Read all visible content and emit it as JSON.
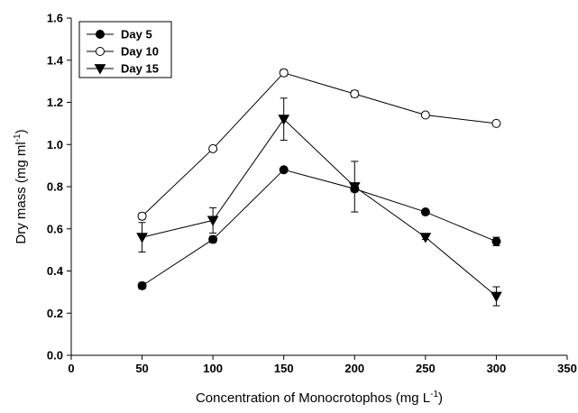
{
  "chart_data": {
    "type": "line",
    "title": "",
    "xlabel": {
      "main": "Concentration of Monocrotophos (mg L",
      "sup": "-1",
      "end": ")"
    },
    "ylabel": {
      "main": "Dry mass (mg ml",
      "sup": "-1",
      "end": ")"
    },
    "xlim": [
      0,
      350
    ],
    "ylim": [
      0.0,
      1.6
    ],
    "xticks": [
      "0",
      "50",
      "100",
      "150",
      "200",
      "250",
      "300",
      "350"
    ],
    "yticks": [
      "0.0",
      "0.2",
      "0.4",
      "0.6",
      "0.8",
      "1.0",
      "1.2",
      "1.4",
      "1.6"
    ],
    "grid": false,
    "legend_position": "top-left",
    "x": [
      50,
      100,
      150,
      200,
      250,
      300
    ],
    "series": [
      {
        "name": "Day 5",
        "marker": "filled-circle",
        "values": [
          0.33,
          0.55,
          0.88,
          0.79,
          0.68,
          0.54
        ],
        "errors": [
          0.015,
          0.015,
          0.01,
          0.015,
          0.01,
          0.02
        ]
      },
      {
        "name": "Day 10",
        "marker": "open-circle",
        "values": [
          0.66,
          0.98,
          1.34,
          1.24,
          1.14,
          1.1
        ],
        "errors": [
          0.015,
          0.01,
          0.015,
          0.015,
          0.01,
          0.01
        ]
      },
      {
        "name": "Day 15",
        "marker": "filled-triangle-down",
        "values": [
          0.56,
          0.64,
          1.12,
          0.8,
          0.56,
          0.28
        ],
        "errors": [
          0.07,
          0.06,
          0.1,
          0.12,
          0.01,
          0.045
        ]
      }
    ],
    "colors": {
      "line": "#000000",
      "marker_fill": "#000000",
      "open_fill": "#ffffff"
    }
  }
}
